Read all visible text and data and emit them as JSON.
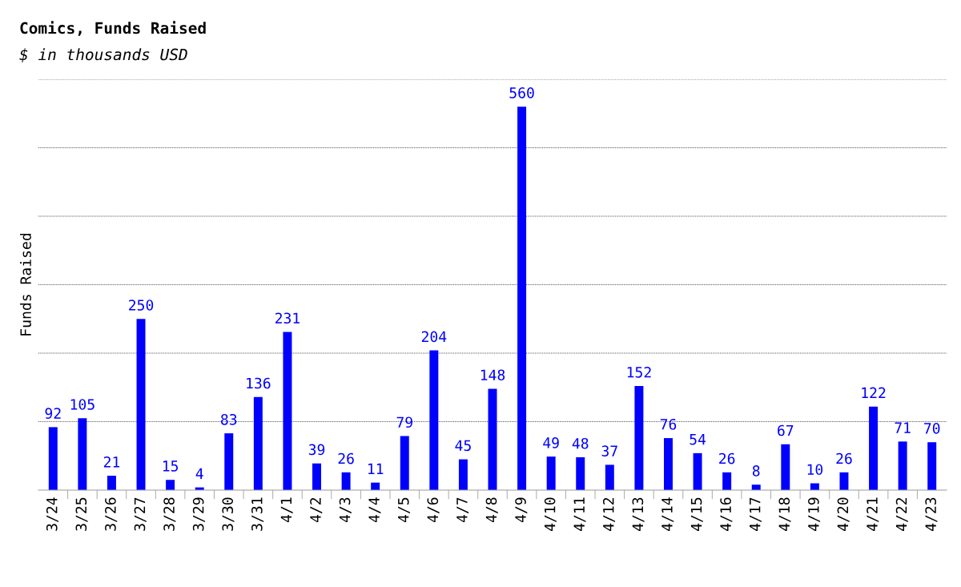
{
  "chart_data": {
    "type": "bar",
    "title": "Comics, Funds Raised",
    "subtitle": "$ in thousands USD",
    "ylabel": "Funds Raised",
    "categories": [
      "3/24",
      "3/25",
      "3/26",
      "3/27",
      "3/28",
      "3/29",
      "3/30",
      "3/31",
      "4/1",
      "4/2",
      "4/3",
      "4/4",
      "4/5",
      "4/6",
      "4/7",
      "4/8",
      "4/9",
      "4/10",
      "4/11",
      "4/12",
      "4/13",
      "4/14",
      "4/15",
      "4/16",
      "4/17",
      "4/18",
      "4/19",
      "4/20",
      "4/21",
      "4/22",
      "4/23"
    ],
    "values": [
      92,
      105,
      21,
      250,
      15,
      4,
      83,
      136,
      231,
      39,
      26,
      11,
      79,
      204,
      45,
      148,
      560,
      49,
      48,
      37,
      152,
      76,
      54,
      26,
      8,
      67,
      10,
      26,
      122,
      71,
      70
    ],
    "color": "#0000ff",
    "data_labels": true,
    "ylim": [
      0,
      600
    ],
    "yticks": [
      {
        "value": 100,
        "label": null
      },
      {
        "value": 200,
        "label": null
      },
      {
        "value": 300,
        "label": null
      },
      {
        "value": 400,
        "label": null
      },
      {
        "value": 500,
        "label": null
      },
      {
        "value": 600,
        "label": null
      }
    ],
    "tick_labels": "x",
    "grid": "y",
    "legend": false
  }
}
